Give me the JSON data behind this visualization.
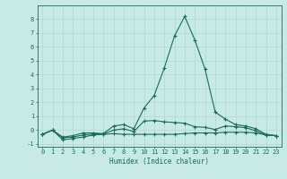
{
  "xlabel": "Humidex (Indice chaleur)",
  "background_color": "#c8eae6",
  "grid_color": "#b0d8d4",
  "line_color": "#1a6b5a",
  "x_values": [
    0,
    1,
    2,
    3,
    4,
    5,
    6,
    7,
    8,
    9,
    10,
    11,
    12,
    13,
    14,
    15,
    16,
    17,
    18,
    19,
    20,
    21,
    22,
    23
  ],
  "series1": [
    -0.3,
    0.0,
    -0.5,
    -0.4,
    -0.2,
    -0.2,
    -0.25,
    0.3,
    0.4,
    0.1,
    1.6,
    2.5,
    4.5,
    6.8,
    8.2,
    6.5,
    4.4,
    1.3,
    0.8,
    0.4,
    0.3,
    0.1,
    -0.3,
    -0.4
  ],
  "series2": [
    -0.3,
    0.0,
    -0.7,
    -0.6,
    -0.5,
    -0.35,
    -0.3,
    -0.25,
    -0.3,
    -0.3,
    -0.3,
    -0.3,
    -0.3,
    -0.3,
    -0.25,
    -0.2,
    -0.2,
    -0.2,
    -0.15,
    -0.15,
    -0.15,
    -0.2,
    -0.35,
    -0.4
  ],
  "series3": [
    -0.3,
    0.0,
    -0.55,
    -0.5,
    -0.35,
    -0.28,
    -0.27,
    0.0,
    0.1,
    -0.1,
    0.65,
    0.7,
    0.6,
    0.55,
    0.5,
    0.25,
    0.2,
    0.05,
    0.3,
    0.25,
    0.18,
    -0.05,
    -0.34,
    -0.4
  ],
  "ylim": [
    -1.2,
    9.0
  ],
  "xlim": [
    -0.5,
    23.5
  ],
  "yticks": [
    -1,
    0,
    1,
    2,
    3,
    4,
    5,
    6,
    7,
    8
  ],
  "xlabel_fontsize": 5.5,
  "tick_fontsize": 5
}
